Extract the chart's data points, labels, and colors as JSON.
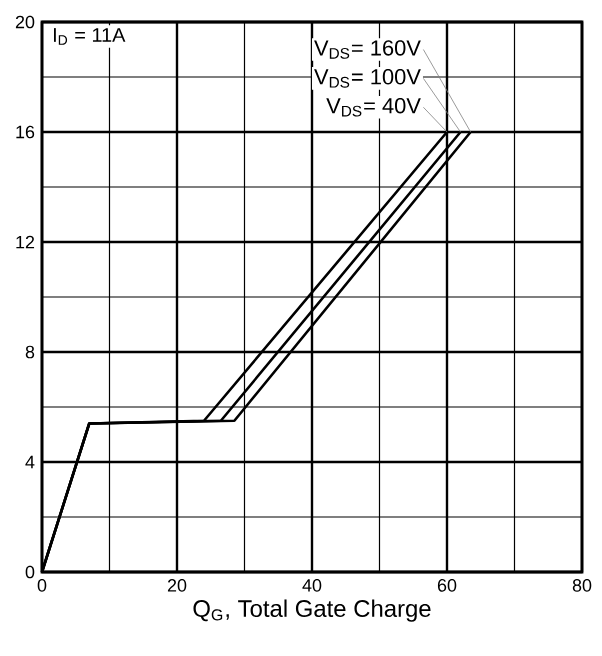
{
  "chart_data": {
    "type": "line",
    "xlabel": "Q$_{G}$, Total Gate Charge",
    "annotations": [
      "I$_{D}$ = 11A"
    ],
    "series": [
      {
        "name": "V$_{DS}$= 160V",
        "color": "#000000",
        "x": [
          0,
          7,
          28.5,
          63.5
        ],
        "values": [
          0,
          5.4,
          5.5,
          16
        ]
      },
      {
        "name": "V$_{DS}$= 100V",
        "color": "#000000",
        "x": [
          0,
          7,
          26.5,
          62
        ],
        "values": [
          0,
          5.4,
          5.5,
          16
        ]
      },
      {
        "name": "V$_{DS}$= 40V",
        "color": "#000000",
        "x": [
          0,
          7,
          24,
          60
        ],
        "values": [
          0,
          5.4,
          5.5,
          16
        ]
      }
    ],
    "xlim": [
      0,
      80
    ],
    "ylim": [
      0,
      20
    ],
    "xticks": [
      0,
      20,
      40,
      60,
      80
    ],
    "yticks": [
      0,
      4,
      8,
      12,
      16,
      20
    ],
    "grid": true,
    "marker": "none",
    "line_style": "solid"
  }
}
